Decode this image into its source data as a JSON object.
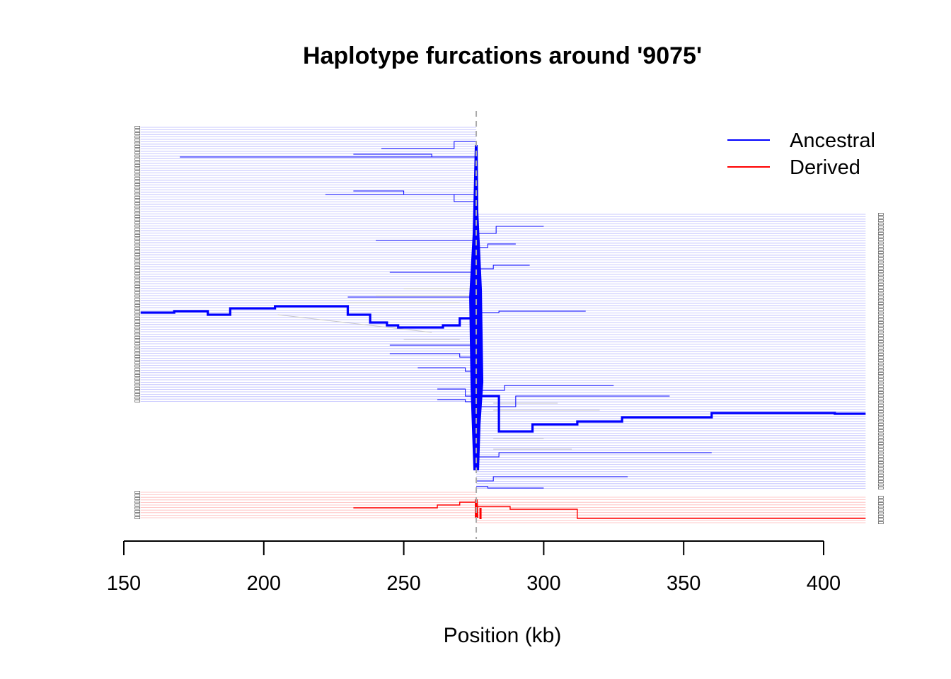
{
  "chart_data": {
    "type": "line",
    "title": "Haplotype furcations around '9075'",
    "xlabel": "Position (kb)",
    "ylabel": "",
    "xlim": [
      150,
      415
    ],
    "x_ticks": [
      150,
      200,
      250,
      300,
      350,
      400
    ],
    "focal_position": 275.9,
    "legend_position": "top-right",
    "grid": false,
    "series": [
      {
        "name": "Ancestral",
        "color": "#0000ff",
        "left_extent": 156,
        "right_extent": 415,
        "left_branch_path": [
          [
            156,
            442
          ],
          [
            168,
            442
          ],
          [
            168,
            440
          ],
          [
            180,
            440
          ],
          [
            180,
            445
          ],
          [
            188,
            445
          ],
          [
            188,
            436
          ],
          [
            204,
            436
          ],
          [
            204,
            433
          ],
          [
            230,
            433
          ],
          [
            230,
            445
          ],
          [
            238,
            445
          ],
          [
            238,
            456
          ],
          [
            244,
            456
          ],
          [
            244,
            460
          ],
          [
            248,
            460
          ],
          [
            248,
            463
          ],
          [
            264,
            463
          ],
          [
            264,
            460
          ],
          [
            270,
            460
          ],
          [
            270,
            450
          ],
          [
            274,
            450
          ],
          [
            274,
            440
          ],
          [
            276,
            440
          ]
        ],
        "right_branch_path": [
          [
            276,
            560
          ],
          [
            284,
            560
          ],
          [
            284,
            610
          ],
          [
            296,
            610
          ],
          [
            296,
            600
          ],
          [
            312,
            600
          ],
          [
            312,
            596
          ],
          [
            328,
            596
          ],
          [
            328,
            590
          ],
          [
            360,
            590
          ],
          [
            360,
            584
          ],
          [
            404,
            584
          ],
          [
            404,
            585
          ],
          [
            415,
            585
          ]
        ]
      },
      {
        "name": "Derived",
        "color": "#ff0000",
        "left_extent": 156,
        "right_extent": 415,
        "left_branch_path": [
          [
            232,
            718
          ],
          [
            262,
            718
          ],
          [
            262,
            714
          ],
          [
            270,
            714
          ],
          [
            270,
            710
          ],
          [
            276,
            710
          ]
        ],
        "right_branch_path": [
          [
            276,
            716
          ],
          [
            288,
            716
          ],
          [
            288,
            720
          ],
          [
            312,
            720
          ],
          [
            312,
            733
          ],
          [
            415,
            733
          ]
        ]
      }
    ]
  }
}
